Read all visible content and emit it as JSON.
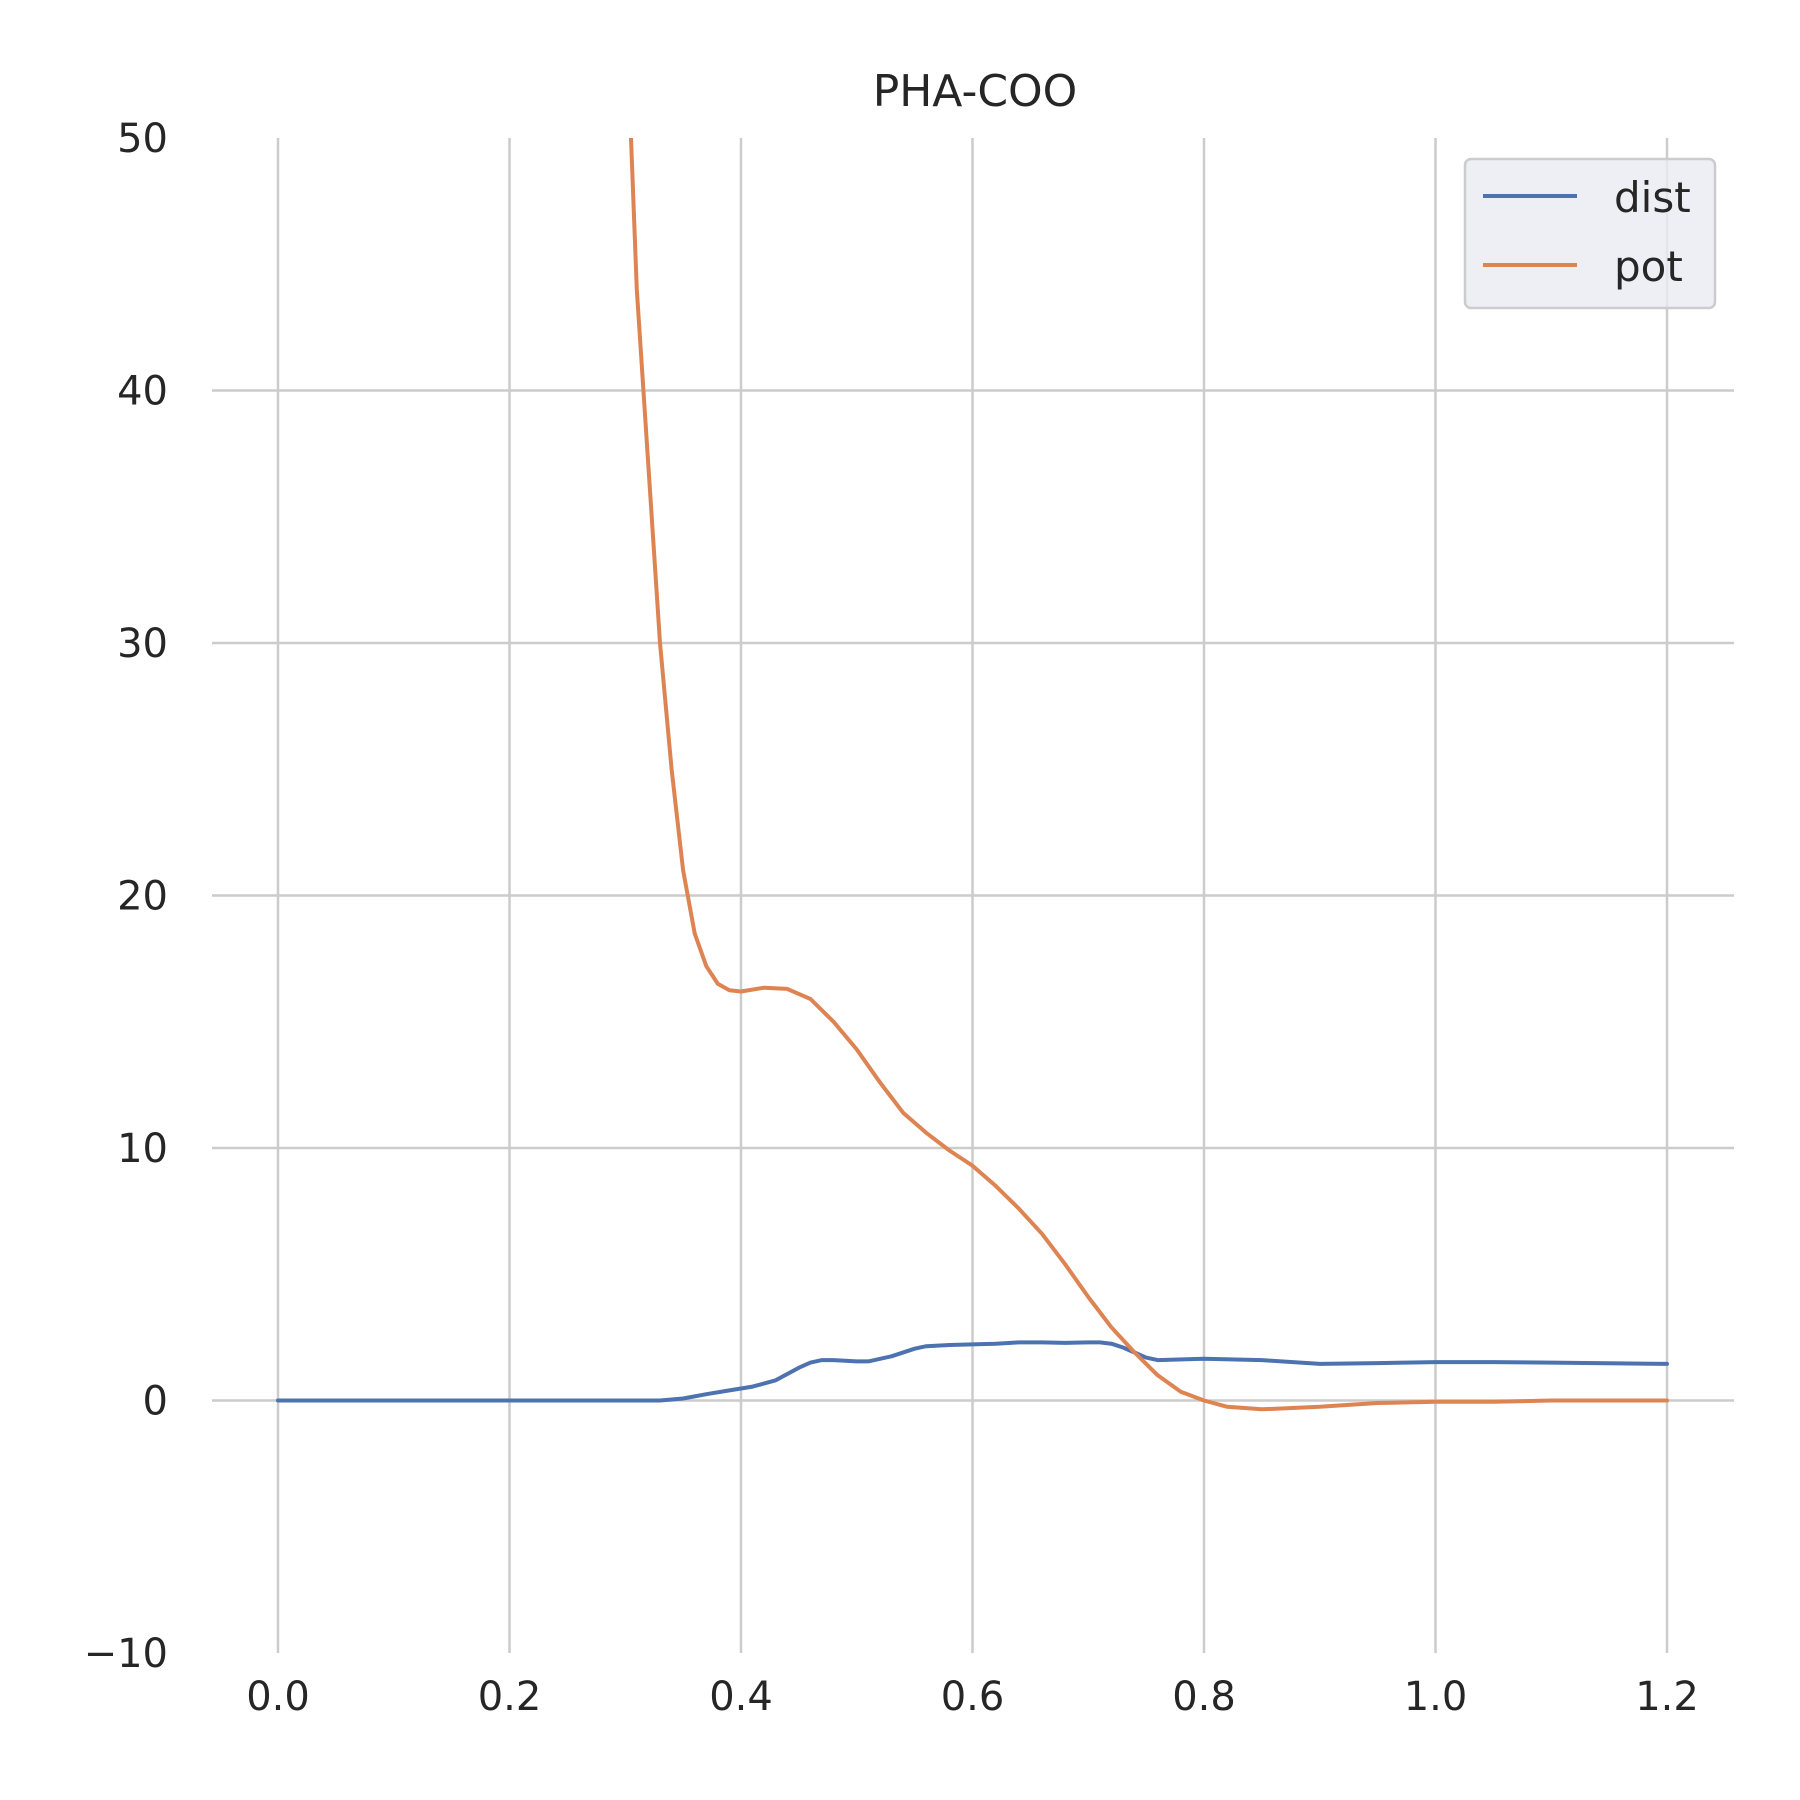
{
  "chart_data": {
    "type": "line",
    "title": "PHA-COO",
    "xlabel": "",
    "ylabel": "",
    "xlim": [
      0.0,
      1.2
    ],
    "ylim": [
      -10,
      50
    ],
    "xticks": [
      "0.0",
      "0.2",
      "0.4",
      "0.6",
      "0.8",
      "1.0",
      "1.2"
    ],
    "yticks": [
      "50",
      "40",
      "30",
      "20",
      "10",
      "0",
      "−10"
    ],
    "grid": true,
    "legend_position": "top-right",
    "series": [
      {
        "name": "dist",
        "color": "#4c72b0",
        "x": [
          0.0,
          0.1,
          0.2,
          0.3,
          0.33,
          0.35,
          0.37,
          0.39,
          0.41,
          0.43,
          0.45,
          0.46,
          0.47,
          0.48,
          0.5,
          0.51,
          0.53,
          0.55,
          0.56,
          0.58,
          0.6,
          0.62,
          0.64,
          0.66,
          0.68,
          0.7,
          0.71,
          0.72,
          0.73,
          0.74,
          0.75,
          0.76,
          0.8,
          0.85,
          0.9,
          0.95,
          1.0,
          1.05,
          1.1,
          1.2
        ],
        "y": [
          0.0,
          0.0,
          0.0,
          0.0,
          0.0,
          0.08,
          0.25,
          0.4,
          0.55,
          0.8,
          1.3,
          1.5,
          1.6,
          1.6,
          1.55,
          1.55,
          1.75,
          2.05,
          2.15,
          2.2,
          2.22,
          2.25,
          2.3,
          2.3,
          2.28,
          2.3,
          2.3,
          2.25,
          2.1,
          1.9,
          1.7,
          1.6,
          1.65,
          1.6,
          1.45,
          1.48,
          1.52,
          1.52,
          1.5,
          1.45
        ]
      },
      {
        "name": "pot",
        "color": "#dd8452",
        "x": [
          0.305,
          0.31,
          0.32,
          0.33,
          0.34,
          0.35,
          0.36,
          0.37,
          0.38,
          0.39,
          0.4,
          0.42,
          0.44,
          0.46,
          0.48,
          0.5,
          0.52,
          0.54,
          0.56,
          0.58,
          0.6,
          0.62,
          0.64,
          0.66,
          0.68,
          0.7,
          0.72,
          0.74,
          0.76,
          0.78,
          0.8,
          0.82,
          0.85,
          0.9,
          0.95,
          1.0,
          1.05,
          1.1,
          1.2
        ],
        "y": [
          50,
          44,
          37,
          30,
          25,
          21,
          18.5,
          17.2,
          16.5,
          16.25,
          16.2,
          16.35,
          16.3,
          15.9,
          15.0,
          13.9,
          12.6,
          11.4,
          10.6,
          9.9,
          9.3,
          8.5,
          7.6,
          6.6,
          5.4,
          4.1,
          2.9,
          1.9,
          1.0,
          0.35,
          0.0,
          -0.25,
          -0.35,
          -0.25,
          -0.1,
          -0.05,
          -0.05,
          0.0,
          0.0
        ]
      }
    ]
  }
}
